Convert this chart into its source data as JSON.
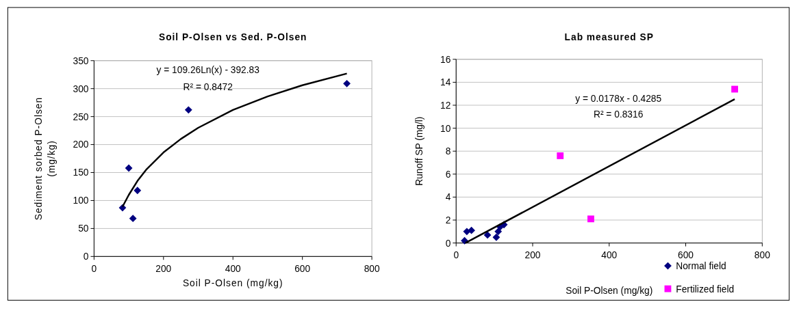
{
  "chart_data": [
    {
      "type": "scatter",
      "title": "Soil P-Olsen vs Sed. P-Olsen",
      "xlabel": "Soil P-Olsen (mg/kg)",
      "ylabel": "Sediment sorbed P-Olsen (mg/kg)",
      "xlim": [
        0,
        800
      ],
      "xticks": [
        0,
        200,
        400,
        600,
        800
      ],
      "ylim": [
        0,
        350
      ],
      "yticks": [
        0,
        50,
        100,
        150,
        200,
        250,
        300,
        350
      ],
      "grid": "y",
      "legend": false,
      "series": [
        {
          "color": "#000080",
          "marker": "diamond",
          "x": [
            82,
            100,
            112,
            125,
            272,
            728
          ],
          "values": [
            87,
            158,
            68,
            118,
            262,
            309
          ]
        },
        {
          "type": "line",
          "color": "#000000",
          "marker": "none",
          "line_style": "solid",
          "x": [
            82,
            100,
            125,
            150,
            200,
            250,
            300,
            400,
            500,
            600,
            728
          ],
          "values": [
            89,
            110,
            135,
            155,
            186,
            210,
            230,
            262,
            286,
            306,
            327
          ]
        }
      ],
      "annotations": [
        "y = 109.26Ln(x) - 392.83",
        "R² = 0.8472"
      ]
    },
    {
      "type": "scatter",
      "title": "Lab measured SP",
      "xlabel": "Soil P-Olsen (mg/kg)",
      "ylabel": "Runoff SP (mg/l)",
      "xlim": [
        0,
        800
      ],
      "xticks": [
        0,
        200,
        400,
        600,
        800
      ],
      "ylim": [
        0,
        16
      ],
      "yticks": [
        0,
        2,
        4,
        6,
        8,
        10,
        12,
        14,
        16
      ],
      "grid": "y",
      "legend": "bottom right",
      "series": [
        {
          "name": "Normal field",
          "color": "#000080",
          "marker": "diamond",
          "x": [
            22,
            28,
            40,
            82,
            105,
            110,
            115,
            125
          ],
          "values": [
            0.2,
            1.0,
            1.1,
            0.7,
            0.5,
            1.0,
            1.4,
            1.6
          ]
        },
        {
          "name": "Fertilized field",
          "color": "#ff00ff",
          "marker": "square",
          "x": [
            272,
            352,
            728
          ],
          "values": [
            7.6,
            2.1,
            13.4
          ]
        },
        {
          "type": "line",
          "color": "#000000",
          "marker": "none",
          "line_style": "solid",
          "x": [
            24,
            728
          ],
          "values": [
            0.0,
            12.53
          ]
        }
      ],
      "annotations": [
        "y = 0.0178x - 0.4285",
        "R² = 0.8316"
      ]
    }
  ]
}
